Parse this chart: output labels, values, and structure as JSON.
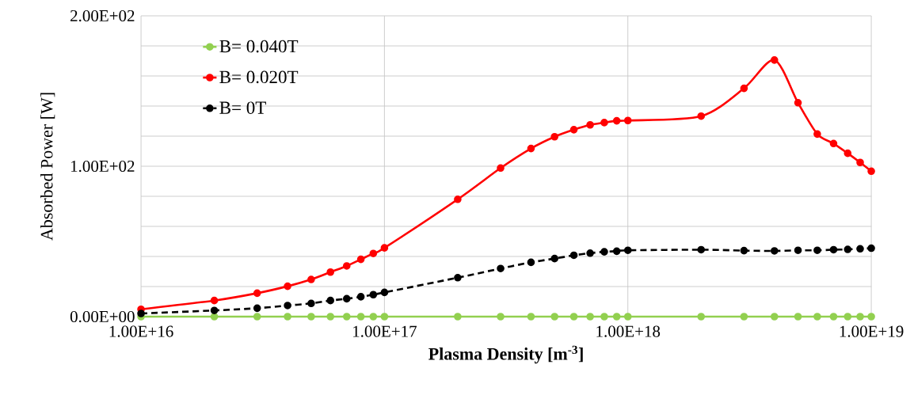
{
  "chart_data": {
    "type": "line",
    "xlabel": "Plasma Density [m$^{-3}$]",
    "ylabel": "Absorbed Power [W]",
    "log": "x",
    "grid": true,
    "legend": "top left",
    "marker": "circle",
    "x": [
      1e+16,
      2e+16,
      3e+16,
      4e+16,
      5e+16,
      6e+16,
      7e+16,
      8e+16,
      9e+16,
      1e+17,
      2e+17,
      3e+17,
      4e+17,
      5e+17,
      6e+17,
      7e+17,
      8e+17,
      9e+17,
      1e+18,
      2e+18,
      3e+18,
      4e+18,
      5e+18,
      6e+18,
      7e+18,
      8e+18,
      9e+18,
      1e+19
    ],
    "xlim": [
      1e+16,
      1e+19
    ],
    "ylim": [
      0,
      200
    ],
    "xticks": [
      {
        "value": 1e+16,
        "label": "1.00E+16"
      },
      {
        "value": 1e+17,
        "label": "1.00E+17"
      },
      {
        "value": 1e+18,
        "label": "1.00E+18"
      },
      {
        "value": 1e+19,
        "label": "1.00E+19"
      }
    ],
    "yticks": [
      {
        "value": 0,
        "label": "0.00E+00"
      },
      {
        "value": 100,
        "label": "1.00E+02"
      },
      {
        "value": 200,
        "label": "2.00E+02"
      }
    ],
    "series": [
      {
        "name": "B= 0.040T",
        "color": "#92d050",
        "line_style": "solid",
        "values": [
          0,
          0,
          0,
          0,
          0,
          0,
          0,
          0,
          0,
          0,
          0,
          0,
          0,
          0,
          0,
          0,
          0,
          0,
          0,
          0,
          0,
          0,
          0,
          0,
          0,
          0,
          0,
          0
        ]
      },
      {
        "name": "B= 0.020T",
        "color": "#ff0000",
        "line_style": "solid",
        "values": [
          4.9,
          10.7,
          15.6,
          20.2,
          24.7,
          29.6,
          33.7,
          38.1,
          42.0,
          45.7,
          78.0,
          98.8,
          111.8,
          119.6,
          124.3,
          127.5,
          129.0,
          130.2,
          130.4,
          133.3,
          151.8,
          170.6,
          142.2,
          121.4,
          115.1,
          108.6,
          102.5,
          96.7
        ]
      },
      {
        "name": "B= 0T",
        "color": "#000000",
        "line_style": "dashed",
        "values": [
          2.1,
          4.1,
          5.6,
          7.4,
          8.8,
          10.7,
          11.9,
          13.2,
          14.6,
          16.1,
          25.9,
          32.0,
          36.1,
          38.6,
          40.8,
          42.2,
          43.1,
          43.5,
          44.1,
          44.5,
          43.9,
          43.7,
          44.1,
          44.1,
          44.5,
          44.7,
          45.1,
          45.5
        ]
      }
    ]
  }
}
